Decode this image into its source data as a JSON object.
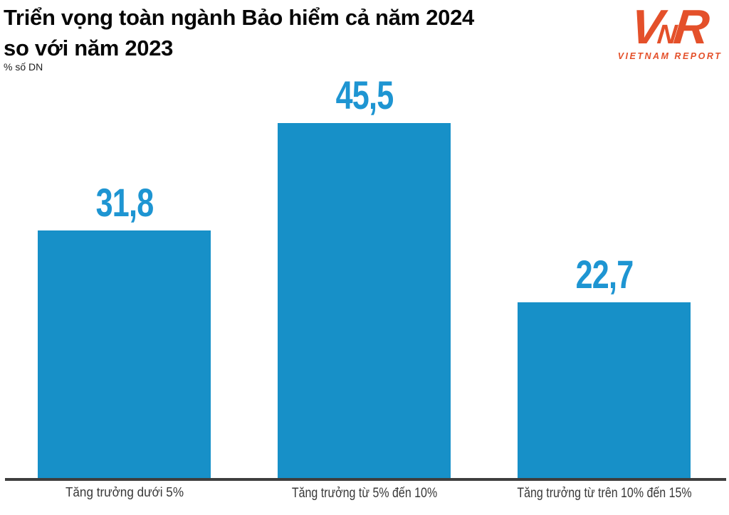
{
  "title": {
    "line1": "Triển vọng toàn ngành Bảo hiểm cả năm 2024",
    "line2": "so với năm 2023"
  },
  "subtitle": "% số DN",
  "logo": {
    "v": "V",
    "n": "N",
    "r": "R",
    "caption": "VIETNAM REPORT",
    "color": "#E4502A"
  },
  "chart_data": {
    "type": "bar",
    "title": "Triển vọng toàn ngành Bảo hiểm cả năm 2024 so với năm 2023",
    "ylabel": "% số DN",
    "xlabel": "",
    "categories": [
      "Tăng trưởng dưới 5%",
      "Tăng trưởng từ 5% đến 10%",
      "Tăng trưởng từ trên 10% đến 15%"
    ],
    "values": [
      31.8,
      45.5,
      22.7
    ],
    "value_labels": [
      "31,8",
      "45,5",
      "22,7"
    ],
    "ylim": [
      0,
      50
    ],
    "grid": false,
    "legend": false,
    "bar_color": "#1790C8",
    "value_label_color": "#1E95D2",
    "axis_color": "#3e3e3e"
  }
}
